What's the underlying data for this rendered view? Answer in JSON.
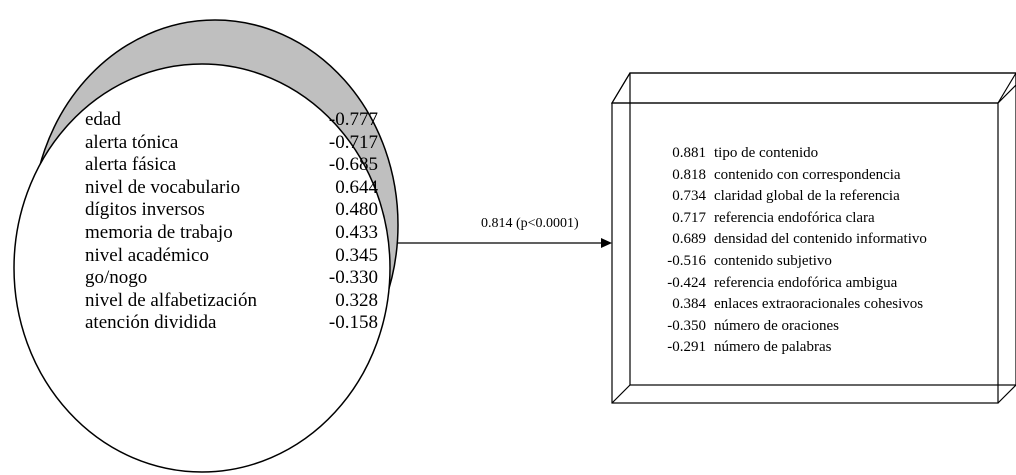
{
  "left_variables": [
    {
      "label": "edad",
      "value": "-0.777"
    },
    {
      "label": "alerta tónica",
      "value": "-0.717"
    },
    {
      "label": "alerta fásica",
      "value": "-0.685"
    },
    {
      "label": "nivel de vocabulario",
      "value": "0.644"
    },
    {
      "label": "dígitos inversos",
      "value": "0.480"
    },
    {
      "label": "memoria de trabajo",
      "value": "0.433"
    },
    {
      "label": "nivel académico",
      "value": "0.345"
    },
    {
      "label": "go/nogo",
      "value": "-0.330"
    },
    {
      "label": "nivel de alfabetización",
      "value": "0.328"
    },
    {
      "label": "atención dividida",
      "value": "-0.158"
    }
  ],
  "correlation_label": "0.814 (p<0.0001)",
  "right_variables": [
    {
      "value": "0.881",
      "label": "tipo de contenido"
    },
    {
      "value": "0.818",
      "label": "contenido con correspondencia"
    },
    {
      "value": "0.734",
      "label": "claridad global de la referencia"
    },
    {
      "value": "0.717",
      "label": "referencia endofórica clara"
    },
    {
      "value": "0.689",
      "label": "densidad del contenido informativo"
    },
    {
      "value": "-0.516",
      "label": "contenido subjetivo"
    },
    {
      "value": "-0.424",
      "label": "referencia endofórica ambigua"
    },
    {
      "value": "0.384",
      "label": "enlaces extraoracionales cohesivos"
    },
    {
      "value": "-0.350",
      "label": "número de oraciones"
    },
    {
      "value": "-0.291",
      "label": "número de palabras"
    }
  ]
}
